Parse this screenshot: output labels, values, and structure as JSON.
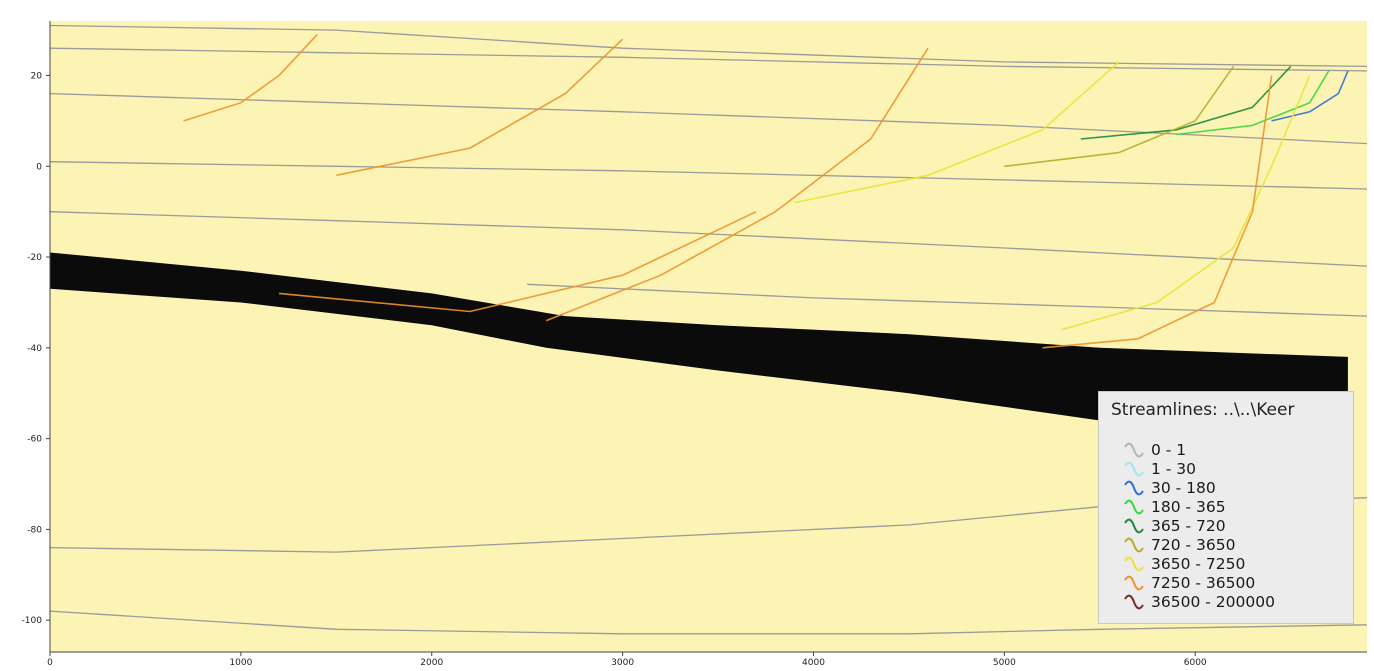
{
  "chart_data": {
    "type": "line",
    "title": "",
    "xlabel": "",
    "ylabel": "",
    "xlim": [
      0,
      6900
    ],
    "ylim": [
      -107,
      32
    ],
    "x_ticks": [
      0,
      1000,
      2000,
      3000,
      4000,
      5000,
      6000
    ],
    "x_tick_labels": [
      "0",
      "1000",
      "2000",
      "3000",
      "4000",
      "5000",
      "6000"
    ],
    "y_ticks": [
      20,
      0,
      -20,
      -40,
      -60,
      -80,
      -100
    ],
    "y_tick_labels": [
      "20",
      "0",
      "-20",
      "-40",
      "-60",
      "-80",
      "-100"
    ],
    "grid": false,
    "background_color": "#fbf4b4",
    "legend": {
      "title": "Streamlines: ..\\..\\Keer",
      "placement": "bottom-right",
      "entries": [
        {
          "label": "0 - 1",
          "color": "#b4b4b4"
        },
        {
          "label": "1 - 30",
          "color": "#a9e4f4"
        },
        {
          "label": "30 - 180",
          "color": "#2f6fd6"
        },
        {
          "label": "180 - 365",
          "color": "#39d63a"
        },
        {
          "label": "365 - 720",
          "color": "#1d8a35"
        },
        {
          "label": "720 - 3650",
          "color": "#b4ad2a"
        },
        {
          "label": "3650 - 7250",
          "color": "#e8e43a"
        },
        {
          "label": "7250 - 36500",
          "color": "#f0922a"
        },
        {
          "label": "36500 - 200000",
          "color": "#7a2a22"
        }
      ]
    },
    "black_layer": {
      "color": "#0b0b0b",
      "top": [
        [
          0,
          -19
        ],
        [
          1000,
          -23
        ],
        [
          2000,
          -28
        ],
        [
          2700,
          -33
        ],
        [
          3500,
          -35
        ],
        [
          4500,
          -37
        ],
        [
          5500,
          -40
        ],
        [
          6800,
          -42
        ]
      ],
      "bottom": [
        [
          0,
          -27
        ],
        [
          1000,
          -30
        ],
        [
          2000,
          -35
        ],
        [
          2600,
          -40
        ],
        [
          3500,
          -45
        ],
        [
          4500,
          -50
        ],
        [
          5500,
          -56
        ],
        [
          6800,
          -57
        ]
      ]
    },
    "layer_boundaries": [
      {
        "name": "",
        "points": [
          [
            0,
            31
          ],
          [
            1500,
            30
          ],
          [
            3000,
            26
          ],
          [
            5000,
            23
          ],
          [
            6900,
            22
          ]
        ]
      },
      {
        "name": "",
        "points": [
          [
            0,
            26
          ],
          [
            1500,
            25
          ],
          [
            3000,
            24
          ],
          [
            5000,
            22
          ],
          [
            6900,
            21
          ]
        ]
      },
      {
        "name": "",
        "points": [
          [
            0,
            16
          ],
          [
            1500,
            14
          ],
          [
            3000,
            12
          ],
          [
            5000,
            9
          ],
          [
            6900,
            5
          ]
        ]
      },
      {
        "name": "",
        "points": [
          [
            0,
            1
          ],
          [
            1500,
            0
          ],
          [
            3000,
            -1
          ],
          [
            5000,
            -3
          ],
          [
            6900,
            -5
          ]
        ]
      },
      {
        "name": "",
        "points": [
          [
            0,
            -10
          ],
          [
            1500,
            -12
          ],
          [
            3000,
            -14
          ],
          [
            5000,
            -18
          ],
          [
            6900,
            -22
          ]
        ]
      },
      {
        "name": "",
        "points": [
          [
            2500,
            -26
          ],
          [
            4000,
            -29
          ],
          [
            5500,
            -31
          ],
          [
            6900,
            -33
          ]
        ]
      },
      {
        "name": "",
        "points": [
          [
            0,
            -84
          ],
          [
            1500,
            -85
          ],
          [
            3000,
            -82
          ],
          [
            4500,
            -79
          ],
          [
            5500,
            -75
          ],
          [
            6900,
            -73
          ]
        ]
      },
      {
        "name": "",
        "points": [
          [
            0,
            -98
          ],
          [
            1500,
            -102
          ],
          [
            3000,
            -103
          ],
          [
            4500,
            -103
          ],
          [
            5500,
            -102
          ],
          [
            6900,
            -101
          ]
        ]
      }
    ],
    "series": [
      {
        "range": "30 - 180",
        "color": "#2f6fd6",
        "points": [
          [
            6800,
            21
          ],
          [
            6750,
            16
          ],
          [
            6600,
            12
          ],
          [
            6400,
            10
          ]
        ]
      },
      {
        "range": "180 - 365",
        "color": "#39d63a",
        "points": [
          [
            6700,
            21
          ],
          [
            6600,
            14
          ],
          [
            6300,
            9
          ],
          [
            5900,
            7
          ]
        ]
      },
      {
        "range": "365 - 720",
        "color": "#1d8a35",
        "points": [
          [
            6500,
            22
          ],
          [
            6300,
            13
          ],
          [
            5900,
            8
          ],
          [
            5400,
            6
          ]
        ]
      },
      {
        "range": "720 - 3650",
        "color": "#b4ad2a",
        "points": [
          [
            6200,
            22
          ],
          [
            6000,
            10
          ],
          [
            5600,
            3
          ],
          [
            5000,
            0
          ]
        ]
      },
      {
        "range": "3650 - 7250",
        "color": "#e8e43a",
        "points": [
          [
            6600,
            20
          ],
          [
            6400,
            0
          ],
          [
            6200,
            -18
          ],
          [
            5800,
            -30
          ],
          [
            5300,
            -36
          ]
        ]
      },
      {
        "range": "3650 - 7250",
        "color": "#e8e43a",
        "points": [
          [
            5600,
            23
          ],
          [
            5200,
            8
          ],
          [
            4600,
            -2
          ],
          [
            3900,
            -8
          ]
        ]
      },
      {
        "range": "7250 - 36500",
        "color": "#f0922a",
        "points": [
          [
            6400,
            20
          ],
          [
            6300,
            -10
          ],
          [
            6100,
            -30
          ],
          [
            5700,
            -38
          ],
          [
            5200,
            -40
          ]
        ]
      },
      {
        "range": "7250 - 36500",
        "color": "#f0922a",
        "points": [
          [
            3000,
            28
          ],
          [
            2700,
            16
          ],
          [
            2200,
            4
          ],
          [
            1500,
            -2
          ]
        ]
      },
      {
        "range": "7250 - 36500",
        "color": "#f0922a",
        "points": [
          [
            1400,
            29
          ],
          [
            1200,
            20
          ],
          [
            1000,
            14
          ],
          [
            700,
            10
          ]
        ]
      },
      {
        "range": "7250 - 36500",
        "color": "#f0922a",
        "points": [
          [
            4600,
            26
          ],
          [
            4300,
            6
          ],
          [
            3800,
            -10
          ],
          [
            3200,
            -24
          ],
          [
            2600,
            -34
          ]
        ]
      },
      {
        "range": "7250 - 36500",
        "color": "#f0922a",
        "points": [
          [
            3700,
            -10
          ],
          [
            3000,
            -24
          ],
          [
            2200,
            -32
          ],
          [
            1200,
            -28
          ]
        ]
      }
    ]
  }
}
